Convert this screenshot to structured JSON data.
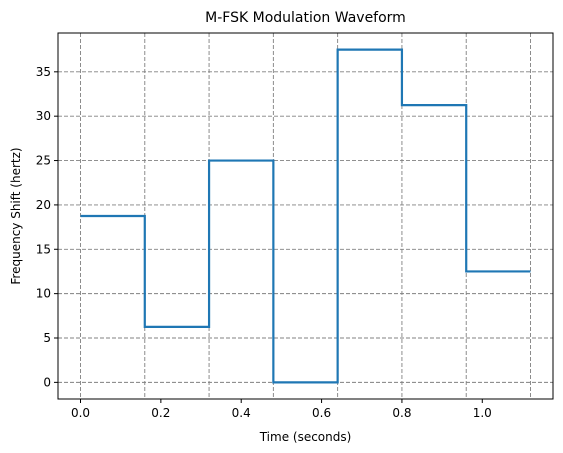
{
  "colors": {
    "background": "#ffffff",
    "series": "#1f77b4",
    "grid": "#808080",
    "axes": "#000000"
  },
  "chart_data": {
    "type": "line",
    "step": "post",
    "title": "M-FSK Modulation Waveform",
    "xlabel": "Time (seconds)",
    "ylabel": "Frequency Shift (hertz)",
    "xlim": [
      -0.056,
      1.176
    ],
    "ylim": [
      -1.875,
      39.375
    ],
    "x_ticks": [
      0.0,
      0.2,
      0.4,
      0.6,
      0.8,
      1.0
    ],
    "x_tick_labels": [
      "0.0",
      "0.2",
      "0.4",
      "0.6",
      "0.8",
      "1.0"
    ],
    "y_ticks": [
      0,
      5,
      10,
      15,
      20,
      25,
      30,
      35
    ],
    "y_tick_labels": [
      "0",
      "5",
      "10",
      "15",
      "20",
      "25",
      "30",
      "35"
    ],
    "grid": true,
    "grid_style": "dashed",
    "x_grid": [
      0.0,
      0.16,
      0.32,
      0.48,
      0.64,
      0.8,
      0.96,
      1.12
    ],
    "y_grid": [
      0,
      5,
      10,
      15,
      20,
      25,
      30,
      35
    ],
    "legend": false,
    "series": [
      {
        "x": [
          0.0,
          0.16,
          0.32,
          0.48,
          0.64,
          0.8,
          0.96,
          1.12
        ],
        "y": [
          18.75,
          6.25,
          25.0,
          0.0,
          37.5,
          31.25,
          12.5,
          12.5
        ]
      }
    ]
  }
}
